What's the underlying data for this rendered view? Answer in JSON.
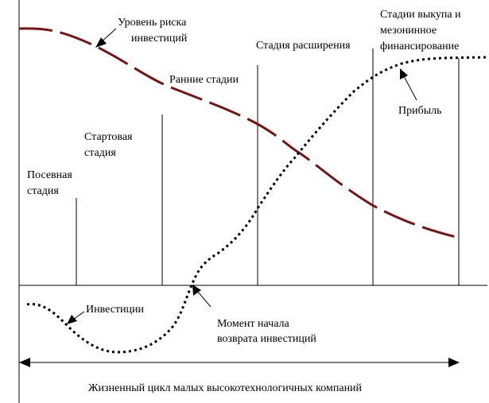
{
  "colors": {
    "risk_curve": "#7a1414",
    "lines": "#000000",
    "background": "#ffffff"
  },
  "stages": {
    "seed": [
      "Посевная",
      "стадия"
    ],
    "startup": [
      "Стартовая",
      "стадия"
    ],
    "early": "Ранние стадии",
    "expansion": "Стадия расширения",
    "buyout": [
      "Стадии выкупа и",
      "мезонинное",
      "финансирование"
    ]
  },
  "curves": {
    "risk": [
      "Уровень риска",
      "инвестиций"
    ],
    "profit": "Прибыль",
    "investments": "Инвестиции"
  },
  "payback_moment": [
    "Момент начала",
    "возврата инвестиций"
  ],
  "lifecycle": "Жизненный цикл малых высокотехнологичных компаний"
}
